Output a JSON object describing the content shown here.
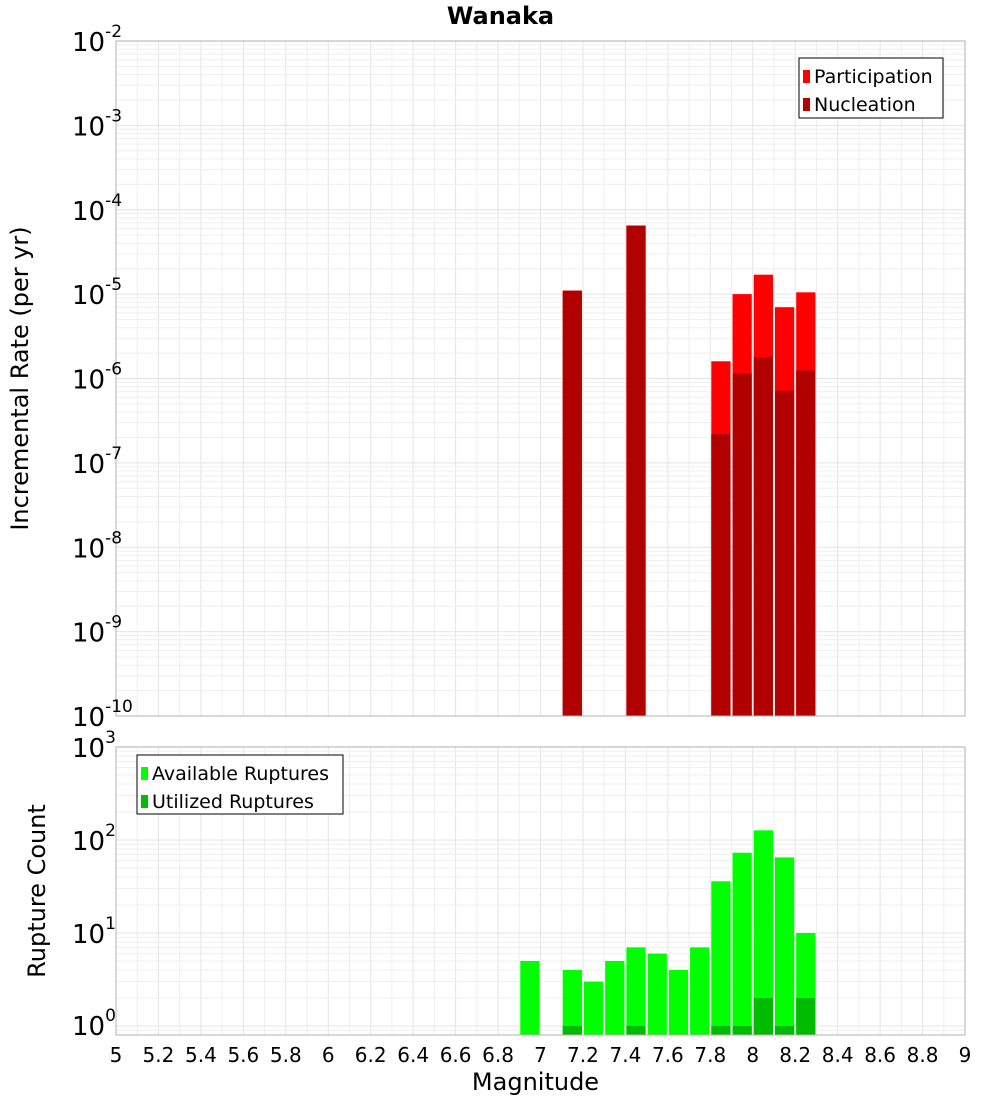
{
  "chart_data": [
    {
      "type": "bar",
      "name": "rate-panel",
      "title": "Wanaka",
      "xlabel": "",
      "ylabel": "Incremental Rate (per yr)",
      "yscale": "log",
      "ylim": [
        1e-10,
        0.01
      ],
      "xlim": [
        5,
        9
      ],
      "bar_width": 0.1,
      "y_ticks": [
        {
          "base": "10",
          "exp": "-2"
        },
        {
          "base": "10",
          "exp": "-3"
        },
        {
          "base": "10",
          "exp": "-4"
        },
        {
          "base": "10",
          "exp": "-5"
        },
        {
          "base": "10",
          "exp": "-6"
        },
        {
          "base": "10",
          "exp": "-7"
        },
        {
          "base": "10",
          "exp": "-8"
        },
        {
          "base": "10",
          "exp": "-9"
        },
        {
          "base": "10",
          "exp": "-10"
        }
      ],
      "legend_position": "top-right",
      "series": [
        {
          "name": "Participation",
          "color": "#ff0000",
          "x": [
            7.15,
            7.45,
            7.85,
            7.95,
            8.05,
            8.15,
            8.25
          ],
          "values": [
            1.1e-05,
            6.5e-05,
            1.6e-06,
            1e-05,
            1.7e-05,
            7e-06,
            1.05e-05
          ]
        },
        {
          "name": "Nucleation",
          "color": "#b00000",
          "x": [
            7.15,
            7.45,
            7.85,
            7.95,
            8.05,
            8.15,
            8.25
          ],
          "values": [
            1.1e-05,
            6.5e-05,
            2.2e-07,
            1.15e-06,
            1.8e-06,
            7.2e-07,
            1.25e-06
          ]
        }
      ]
    },
    {
      "type": "bar",
      "name": "count-panel",
      "xlabel": "Magnitude",
      "ylabel": "Rupture Count",
      "yscale": "log",
      "ylim": [
        0.8,
        1000
      ],
      "xlim": [
        5,
        9
      ],
      "bar_width": 0.1,
      "y_ticks": [
        {
          "base": "10",
          "exp": "3",
          "value": 1000
        },
        {
          "base": "10",
          "exp": "2",
          "value": 100
        },
        {
          "base": "10",
          "exp": "1",
          "value": 10
        },
        {
          "base": "10",
          "exp": "0",
          "value": 1
        }
      ],
      "x_tick_labels": [
        "5",
        "5.2",
        "5.4",
        "5.6",
        "5.8",
        "6",
        "6.2",
        "6.4",
        "6.6",
        "6.8",
        "7",
        "7.2",
        "7.4",
        "7.6",
        "7.8",
        "8",
        "8.2",
        "8.4",
        "8.6",
        "8.8",
        "9"
      ],
      "legend_position": "top-left",
      "series": [
        {
          "name": "Available Ruptures",
          "color": "#00ff00",
          "x": [
            6.95,
            7.15,
            7.25,
            7.35,
            7.45,
            7.55,
            7.65,
            7.75,
            7.85,
            7.95,
            8.05,
            8.15,
            8.25
          ],
          "values": [
            5,
            4,
            3,
            5,
            7,
            6,
            4,
            7,
            36,
            73,
            127,
            65,
            10
          ]
        },
        {
          "name": "Utilized Ruptures",
          "color": "#00bb00",
          "x": [
            7.15,
            7.45,
            7.85,
            7.95,
            8.05,
            8.15,
            8.25
          ],
          "values": [
            1,
            1,
            1,
            1,
            2,
            1,
            2
          ]
        }
      ]
    }
  ]
}
